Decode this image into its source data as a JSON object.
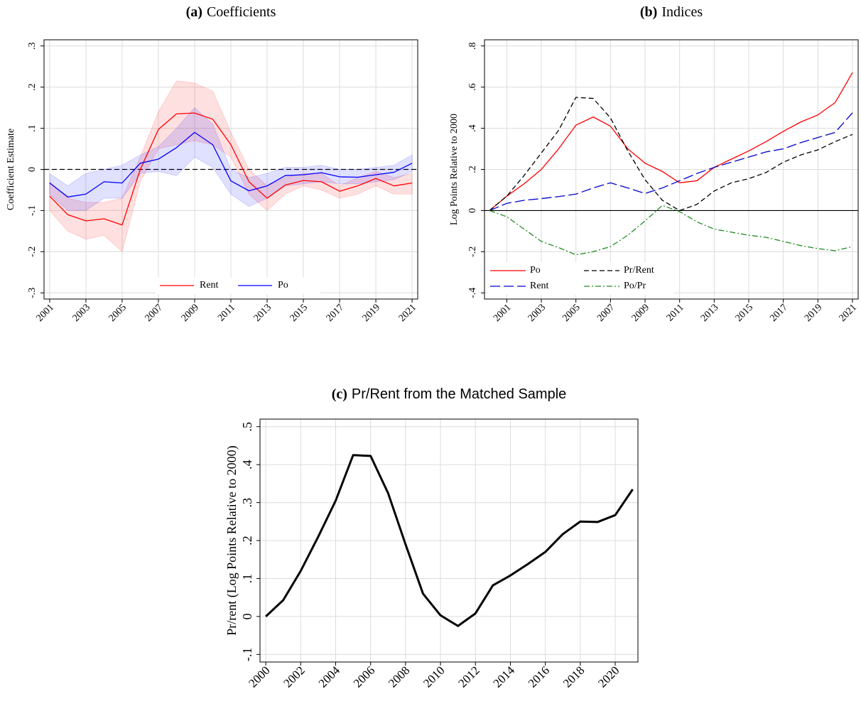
{
  "chart_data": [
    {
      "type": "line",
      "panel_label": "(a)",
      "title": "Coefficients",
      "y_label": "Coefficient Estimate",
      "x": [
        2001,
        2002,
        2003,
        2004,
        2005,
        2006,
        2007,
        2008,
        2009,
        2010,
        2011,
        2012,
        2013,
        2014,
        2015,
        2016,
        2017,
        2018,
        2019,
        2020,
        2021
      ],
      "series": [
        {
          "name": "Rent",
          "color": "#ff0000",
          "dash": "solid",
          "values": [
            -0.065,
            -0.11,
            -0.125,
            -0.12,
            -0.135,
            0.0,
            0.097,
            0.135,
            0.137,
            0.122,
            0.06,
            -0.03,
            -0.07,
            -0.038,
            -0.027,
            -0.03,
            -0.053,
            -0.04,
            -0.022,
            -0.04,
            -0.033
          ],
          "lower": [
            -0.1,
            -0.15,
            -0.17,
            -0.16,
            -0.2,
            -0.03,
            0.05,
            0.06,
            0.07,
            0.06,
            0.03,
            -0.06,
            -0.1,
            -0.06,
            -0.04,
            -0.05,
            -0.07,
            -0.06,
            -0.04,
            -0.06,
            -0.06
          ],
          "upper": [
            -0.03,
            -0.07,
            -0.08,
            -0.08,
            -0.07,
            0.03,
            0.14,
            0.215,
            0.21,
            0.19,
            0.09,
            0.0,
            -0.04,
            -0.02,
            -0.01,
            -0.01,
            -0.04,
            -0.02,
            -0.005,
            -0.02,
            -0.01
          ]
        },
        {
          "name": "Po",
          "color": "#0000ff",
          "dash": "solid",
          "values": [
            -0.033,
            -0.067,
            -0.06,
            -0.03,
            -0.033,
            0.015,
            0.025,
            0.053,
            0.09,
            0.06,
            -0.028,
            -0.052,
            -0.04,
            -0.015,
            -0.013,
            -0.008,
            -0.018,
            -0.019,
            -0.013,
            -0.007,
            0.015
          ],
          "lower": [
            -0.06,
            -0.1,
            -0.1,
            -0.07,
            -0.07,
            -0.01,
            -0.005,
            -0.015,
            0.03,
            0.005,
            -0.06,
            -0.09,
            -0.07,
            -0.04,
            -0.035,
            -0.03,
            -0.035,
            -0.035,
            -0.03,
            -0.025,
            -0.005
          ],
          "upper": [
            -0.01,
            -0.04,
            -0.01,
            0.0,
            0.01,
            0.035,
            0.055,
            0.1,
            0.15,
            0.11,
            0.0,
            -0.02,
            -0.01,
            0.005,
            0.005,
            0.01,
            0.0,
            0.0,
            0.005,
            0.01,
            0.035
          ]
        }
      ],
      "xlim": [
        2000.69,
        2021.31
      ],
      "xticks": [
        2001,
        2003,
        2005,
        2007,
        2009,
        2011,
        2013,
        2015,
        2017,
        2019,
        2021
      ],
      "ylim": [
        -0.315,
        0.315
      ],
      "yticks": [
        {
          "value": -0.3,
          "label": "-.3"
        },
        {
          "value": -0.2,
          "label": "-.2"
        },
        {
          "value": -0.1,
          "label": "-.1"
        },
        0,
        {
          "value": 0.1,
          "label": ".1"
        },
        {
          "value": 0.2,
          "label": ".2"
        },
        {
          "value": 0.3,
          "label": ".3"
        }
      ],
      "grid": true,
      "zero_line": "dashed",
      "legend": "bottom-center"
    },
    {
      "type": "line",
      "panel_label": "(b)",
      "title": "Indices",
      "y_label": "Log Points Relative to 2000",
      "x": [
        2000,
        2001,
        2002,
        2003,
        2004,
        2005,
        2006,
        2007,
        2008,
        2009,
        2010,
        2011,
        2012,
        2013,
        2014,
        2015,
        2016,
        2017,
        2018,
        2019,
        2020,
        2021
      ],
      "series": [
        {
          "name": "Po",
          "color": "#ff0000",
          "dash": "solid",
          "values": [
            0,
            0.07,
            0.13,
            0.2,
            0.3,
            0.415,
            0.455,
            0.41,
            0.3,
            0.23,
            0.19,
            0.135,
            0.145,
            0.21,
            0.25,
            0.29,
            0.335,
            0.385,
            0.43,
            0.465,
            0.525,
            0.67
          ]
        },
        {
          "name": "Rent",
          "color": "#0000cc",
          "dash": "long-dash",
          "values": [
            0,
            0.035,
            0.05,
            0.058,
            0.068,
            0.08,
            0.11,
            0.135,
            0.11,
            0.083,
            0.11,
            0.145,
            0.18,
            0.21,
            0.235,
            0.26,
            0.285,
            0.3,
            0.33,
            0.355,
            0.38,
            0.475
          ]
        },
        {
          "name": "Pr/Rent",
          "color": "#000000",
          "dash": "dash",
          "values": [
            0,
            0.07,
            0.17,
            0.28,
            0.39,
            0.55,
            0.545,
            0.45,
            0.29,
            0.15,
            0.05,
            0.0,
            0.03,
            0.095,
            0.135,
            0.155,
            0.185,
            0.235,
            0.27,
            0.295,
            0.335,
            0.37
          ]
        },
        {
          "name": "Po/Pr",
          "color": "#228b22",
          "dash": "dash-dot",
          "values": [
            0,
            -0.03,
            -0.09,
            -0.15,
            -0.18,
            -0.215,
            -0.2,
            -0.175,
            -0.12,
            -0.05,
            0.025,
            -0.005,
            -0.055,
            -0.09,
            -0.105,
            -0.12,
            -0.13,
            -0.15,
            -0.17,
            -0.185,
            -0.195,
            -0.175
          ]
        }
      ],
      "xlim": [
        1999.71,
        2021.33
      ],
      "xticks": [
        2001,
        2003,
        2005,
        2007,
        2009,
        2011,
        2013,
        2015,
        2017,
        2019,
        2021
      ],
      "ylim": [
        -0.43,
        0.83
      ],
      "yticks": [
        {
          "value": -0.4,
          "label": "-.4"
        },
        {
          "value": -0.2,
          "label": "-.2"
        },
        0,
        {
          "value": 0.2,
          "label": ".2"
        },
        {
          "value": 0.4,
          "label": ".4"
        },
        {
          "value": 0.6,
          "label": ".6"
        },
        {
          "value": 0.8,
          "label": ".8"
        }
      ],
      "grid": true,
      "zero_line": "solid",
      "legend": "bottom-left"
    },
    {
      "type": "line",
      "panel_label": "(c)",
      "title": "Pr/Rent from the Matched Sample",
      "y_label": "Pr/rent (Log Points Relative to 2000)",
      "x": [
        2000,
        2001,
        2002,
        2003,
        2004,
        2005,
        2006,
        2007,
        2008,
        2009,
        2010,
        2011,
        2012,
        2013,
        2014,
        2015,
        2016,
        2017,
        2018,
        2019,
        2020,
        2021
      ],
      "series": [
        {
          "color": "#000000",
          "dash": "solid",
          "width": 3,
          "values": [
            0.0,
            0.043,
            0.12,
            0.21,
            0.305,
            0.425,
            0.423,
            0.325,
            0.19,
            0.06,
            0.003,
            -0.025,
            0.008,
            0.082,
            0.108,
            0.138,
            0.17,
            0.217,
            0.25,
            0.249,
            0.267,
            0.335
          ]
        }
      ],
      "xlim": [
        1999.67,
        2021.3
      ],
      "xticks": [
        2000,
        2002,
        2004,
        2006,
        2008,
        2010,
        2012,
        2014,
        2016,
        2018,
        2020
      ],
      "ylim": [
        -0.12,
        0.52
      ],
      "yticks": [
        {
          "value": -0.1,
          "label": "-.1"
        },
        0,
        {
          "value": 0.1,
          "label": ".1"
        },
        {
          "value": 0.2,
          "label": ".2"
        },
        {
          "value": 0.3,
          "label": ".3"
        },
        {
          "value": 0.4,
          "label": ".4"
        },
        {
          "value": 0.5,
          "label": ".5"
        }
      ],
      "grid": true
    }
  ]
}
